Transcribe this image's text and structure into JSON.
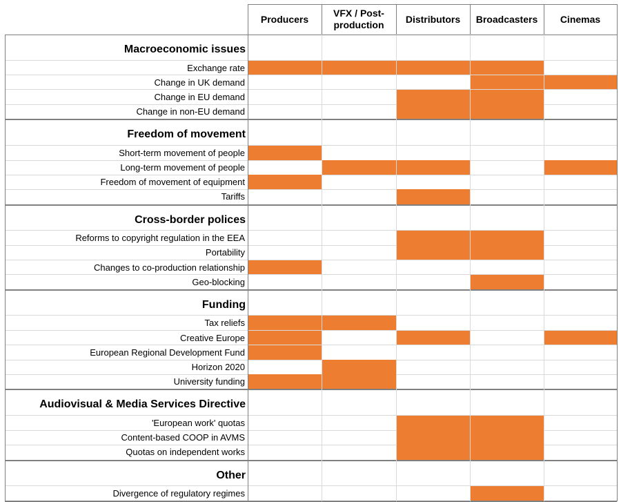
{
  "colors": {
    "fill": "#ed7d31",
    "grid": "#d9d9d9",
    "border": "#7f7f7f"
  },
  "columns": [
    "Producers",
    "VFX / Post-production",
    "Distributors",
    "Broadcasters",
    "Cinemas"
  ],
  "sections": [
    {
      "title": "Macroeconomic issues",
      "rows": [
        {
          "label": "Exchange rate",
          "marks": [
            1,
            1,
            1,
            1,
            0
          ]
        },
        {
          "label": "Change in UK demand",
          "marks": [
            0,
            0,
            0,
            1,
            1
          ]
        },
        {
          "label": "Change in EU demand",
          "marks": [
            0,
            0,
            1,
            1,
            0
          ]
        },
        {
          "label": "Change in non-EU demand",
          "marks": [
            0,
            0,
            1,
            1,
            0
          ]
        }
      ]
    },
    {
      "title": "Freedom of movement",
      "rows": [
        {
          "label": "Short-term movement of people",
          "marks": [
            1,
            0,
            0,
            0,
            0
          ]
        },
        {
          "label": "Long-term movement of people",
          "marks": [
            0,
            1,
            1,
            0,
            1
          ]
        },
        {
          "label": "Freedom of movement of equipment",
          "marks": [
            1,
            0,
            0,
            0,
            0
          ]
        },
        {
          "label": "Tariffs",
          "marks": [
            0,
            0,
            1,
            0,
            0
          ]
        }
      ]
    },
    {
      "title": "Cross-border polices",
      "rows": [
        {
          "label": "Reforms to copyright regulation in the EEA",
          "marks": [
            0,
            0,
            1,
            1,
            0
          ]
        },
        {
          "label": "Portability",
          "marks": [
            0,
            0,
            1,
            1,
            0
          ]
        },
        {
          "label": "Changes to co-production relationship",
          "marks": [
            1,
            0,
            0,
            0,
            0
          ]
        },
        {
          "label": "Geo-blocking",
          "marks": [
            0,
            0,
            0,
            1,
            0
          ]
        }
      ]
    },
    {
      "title": "Funding",
      "rows": [
        {
          "label": "Tax reliefs",
          "marks": [
            1,
            1,
            0,
            0,
            0
          ]
        },
        {
          "label": "Creative Europe",
          "marks": [
            1,
            0,
            1,
            0,
            1
          ]
        },
        {
          "label": "European Regional Development Fund",
          "marks": [
            1,
            0,
            0,
            0,
            0
          ]
        },
        {
          "label": "Horizon 2020",
          "marks": [
            0,
            1,
            0,
            0,
            0
          ]
        },
        {
          "label": "University funding",
          "marks": [
            1,
            1,
            0,
            0,
            0
          ]
        }
      ]
    },
    {
      "title": "Audiovisual & Media Services Directive",
      "rows": [
        {
          "label": "'European work' quotas",
          "marks": [
            0,
            0,
            1,
            1,
            0
          ]
        },
        {
          "label": "Content-based COOP in AVMS",
          "marks": [
            0,
            0,
            1,
            1,
            0
          ]
        },
        {
          "label": "Quotas on independent works",
          "marks": [
            0,
            0,
            1,
            1,
            0
          ]
        }
      ]
    },
    {
      "title": "Other",
      "rows": [
        {
          "label": "Divergence of regulatory regimes",
          "marks": [
            0,
            0,
            0,
            1,
            0
          ]
        }
      ]
    }
  ]
}
